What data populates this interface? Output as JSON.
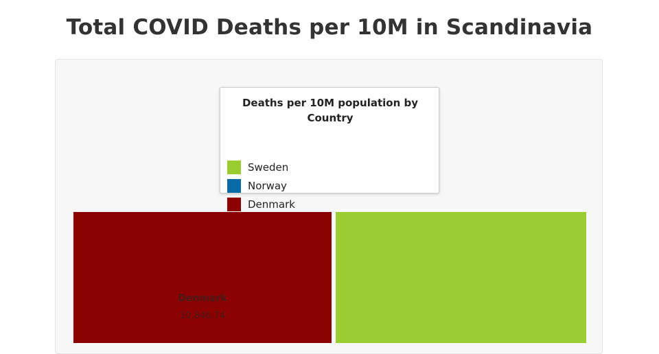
{
  "title": "Total COVID Deaths per 10M in Scandinavia",
  "legend": {
    "title": "Deaths per 10M population by Country",
    "items": [
      {
        "label": "Sweden",
        "color": "#9acd32"
      },
      {
        "label": "Norway",
        "color": "#0a6aa8"
      },
      {
        "label": "Denmark",
        "color": "#8b0000"
      }
    ]
  },
  "chart_data": {
    "type": "treemap",
    "title": "Total COVID Deaths per 10M in Scandinavia",
    "series": [
      {
        "name": "Denmark",
        "color": "#8b0000",
        "label": "Denmark",
        "value_label": "10,846.74"
      },
      {
        "name": "Sweden",
        "color": "#9acd32"
      }
    ]
  }
}
